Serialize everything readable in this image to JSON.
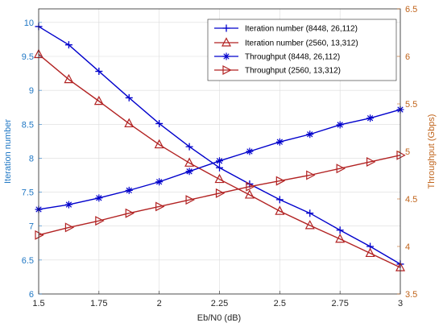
{
  "chart_data": {
    "type": "line",
    "xlabel": "Eb/N0 (dB)",
    "ylabel_left": "Iteration number",
    "ylabel_right": "Throughput (Gbps)",
    "xlim": [
      1.5,
      3
    ],
    "ylim_left": [
      6,
      10.2
    ],
    "ylim_right": [
      3.5,
      6.5
    ],
    "x_ticks": [
      1.5,
      1.75,
      2,
      2.25,
      2.5,
      2.75,
      3
    ],
    "x_tick_labels": [
      "1.5",
      "1.75",
      "2",
      "2.25",
      "2.5",
      "2.75",
      "3"
    ],
    "y_left_ticks": [
      6,
      6.5,
      7,
      7.5,
      8,
      8.5,
      9,
      9.5,
      10
    ],
    "y_left_tick_labels": [
      "6",
      "6.5",
      "7",
      "7.5",
      "8",
      "8.5",
      "9",
      "9.5",
      "10"
    ],
    "y_right_ticks": [
      3.5,
      4,
      4.5,
      5,
      5.5,
      6,
      6.5
    ],
    "y_right_tick_labels": [
      "3.5",
      "4",
      "4.5",
      "5",
      "5.5",
      "6",
      "6.5"
    ],
    "grid": true,
    "legend_position": "top-right",
    "left_axis_color": "#1f77c4",
    "right_axis_color": "#c0631a",
    "series": [
      {
        "name": "Iteration number (8448, 26,112)",
        "axis": "left",
        "color": "#0000cc",
        "marker": "plus",
        "x": [
          1.5,
          1.625,
          1.75,
          1.875,
          2,
          2.125,
          2.25,
          2.375,
          2.5,
          2.625,
          2.75,
          2.875,
          3
        ],
        "y": [
          9.94,
          9.67,
          9.28,
          8.89,
          8.51,
          8.17,
          7.86,
          7.62,
          7.39,
          7.19,
          6.94,
          6.7,
          6.44
        ]
      },
      {
        "name": "Iteration number (2560, 13,312)",
        "axis": "left",
        "color": "#b22222",
        "marker": "triangle-up",
        "x": [
          1.5,
          1.625,
          1.75,
          1.875,
          2,
          2.125,
          2.25,
          2.375,
          2.5,
          2.625,
          2.75,
          2.875,
          3
        ],
        "y": [
          9.53,
          9.16,
          8.84,
          8.51,
          8.2,
          7.93,
          7.69,
          7.46,
          7.22,
          7.01,
          6.81,
          6.6,
          6.39
        ]
      },
      {
        "name": "Throughput (8448, 26,112)",
        "axis": "right",
        "color": "#0000cc",
        "marker": "asterisk",
        "x": [
          1.5,
          1.625,
          1.75,
          1.875,
          2,
          2.125,
          2.25,
          2.375,
          2.5,
          2.625,
          2.75,
          2.875,
          3
        ],
        "y": [
          4.39,
          4.44,
          4.51,
          4.59,
          4.68,
          4.79,
          4.9,
          5.0,
          5.1,
          5.18,
          5.28,
          5.35,
          5.44
        ]
      },
      {
        "name": "Throughput (2560, 13,312)",
        "axis": "right",
        "color": "#b22222",
        "marker": "triangle-right",
        "x": [
          1.5,
          1.625,
          1.75,
          1.875,
          2,
          2.125,
          2.25,
          2.375,
          2.5,
          2.625,
          2.75,
          2.875,
          3
        ],
        "y": [
          4.12,
          4.2,
          4.27,
          4.35,
          4.42,
          4.49,
          4.56,
          4.63,
          4.69,
          4.75,
          4.82,
          4.89,
          4.96
        ]
      }
    ]
  }
}
